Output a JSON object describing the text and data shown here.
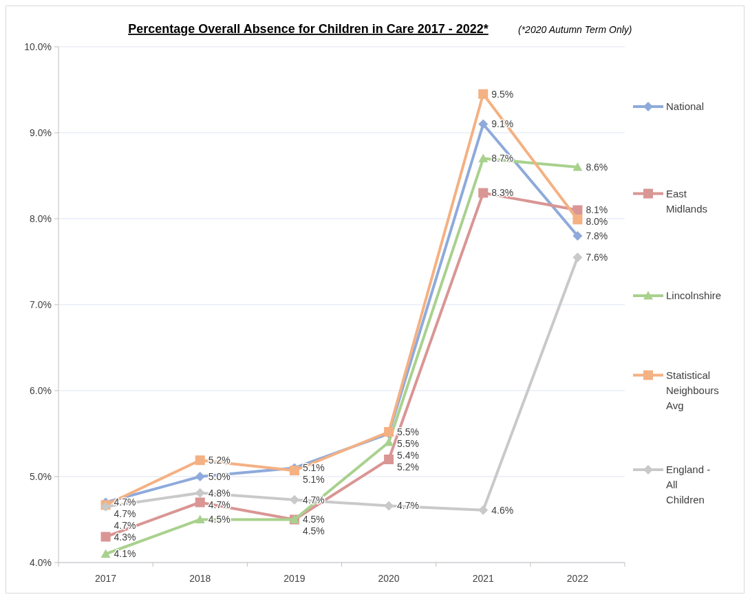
{
  "chart_data": {
    "type": "line",
    "title": "Percentage Overall Absence for Children in Care 2017 - 2022*",
    "subtitle": "(*2020 Autumn Term Only)",
    "categories": [
      "2017",
      "2018",
      "2019",
      "2020",
      "2021",
      "2022"
    ],
    "ylim": [
      4,
      10
    ],
    "yticks": [
      {
        "value": 4,
        "label": "4.0%"
      },
      {
        "value": 5,
        "label": "5.0%"
      },
      {
        "value": 6,
        "label": "6.0%"
      },
      {
        "value": 7,
        "label": "7.0%"
      },
      {
        "value": 8,
        "label": "8.0%"
      },
      {
        "value": 9,
        "label": "9.0%"
      },
      {
        "value": 10,
        "label": "10.0%"
      }
    ],
    "grid": "y",
    "legend": "right",
    "series": [
      {
        "name": "National",
        "color": "#8eaadb",
        "marker": "diamond",
        "values": [
          4.7,
          5.0,
          5.1,
          5.5,
          9.1,
          7.8
        ],
        "value_labels": [
          "4.7%",
          "5.0%",
          "5.1%",
          "5.5%",
          "9.1%",
          "7.8%"
        ]
      },
      {
        "name": "East Midlands",
        "color": "#d99694",
        "marker": "square",
        "values": [
          4.3,
          4.7,
          4.5,
          5.2,
          8.3,
          8.1
        ],
        "value_labels": [
          "4.3%",
          "4.7%",
          "4.5%",
          "5.2%",
          "8.3%",
          "8.1%"
        ]
      },
      {
        "name": "Lincolnshire",
        "color": "#a9d18e",
        "marker": "triangle",
        "values": [
          4.1,
          4.5,
          4.5,
          5.4,
          8.7,
          8.6
        ],
        "value_labels": [
          "4.1%",
          "4.5%",
          "4.5%",
          "5.4%",
          "8.7%",
          "8.6%"
        ]
      },
      {
        "name": "Statistical Neighbours Avg",
        "color": "#f4b183",
        "marker": "square",
        "values": [
          4.67,
          5.19,
          5.07,
          5.52,
          9.45,
          7.99
        ],
        "value_labels": [
          "4.7%",
          "5.2%",
          "5.1%",
          "5.5%",
          "9.5%",
          "8.0%"
        ]
      },
      {
        "name": "England - All Children",
        "color": "#c9c9c9",
        "marker": "diamond",
        "values": [
          4.65,
          4.81,
          4.73,
          4.66,
          4.61,
          7.55
        ],
        "value_labels": [
          "4.7%",
          "4.8%",
          "4.7%",
          "4.7%",
          "4.6%",
          "7.6%"
        ]
      }
    ]
  }
}
